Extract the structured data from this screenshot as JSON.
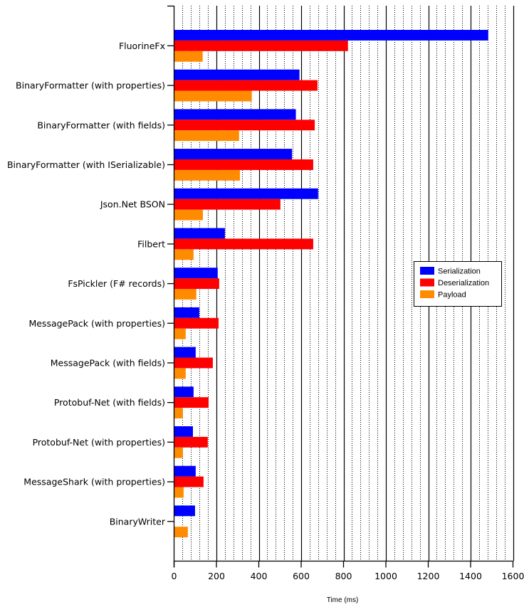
{
  "chart_data": {
    "type": "bar",
    "orientation": "horizontal",
    "title": "",
    "xlabel": "Time (ms)",
    "ylabel": "",
    "xlim": [
      0,
      1600
    ],
    "major_tick_step": 200,
    "minor_tick_step": 40,
    "x_ticks": [
      "0",
      "200",
      "400",
      "600",
      "800",
      "1000",
      "1200",
      "1400",
      "1600"
    ],
    "grid": true,
    "legend_position": "right-middle",
    "categories": [
      "FluorineFx",
      "BinaryFormatter (with properties)",
      "BinaryFormatter (with fields)",
      "BinaryFormatter (with ISerializable)",
      "Json.Net BSON",
      "Filbert",
      "FsPickler (F# records)",
      "MessagePack (with properties)",
      "MessagePack (with fields)",
      "Protobuf-Net (with fields)",
      "Protobuf-Net (with properties)",
      "MessageShark (with properties)",
      "BinaryWriter"
    ],
    "series": [
      {
        "name": "Serialization",
        "color": "#0000ff",
        "values": [
          1483,
          592,
          575,
          557,
          680,
          240,
          206,
          119,
          102,
          92,
          89,
          102,
          99
        ]
      },
      {
        "name": "Deserialization",
        "color": "#ff0000",
        "values": [
          821,
          677,
          664,
          657,
          502,
          657,
          213,
          210,
          183,
          163,
          159,
          139,
          0
        ]
      },
      {
        "name": "Payload",
        "color": "#ff8c00",
        "values": [
          135,
          367,
          307,
          311,
          136,
          92,
          105,
          55,
          55,
          41,
          41,
          45,
          65
        ]
      }
    ]
  }
}
